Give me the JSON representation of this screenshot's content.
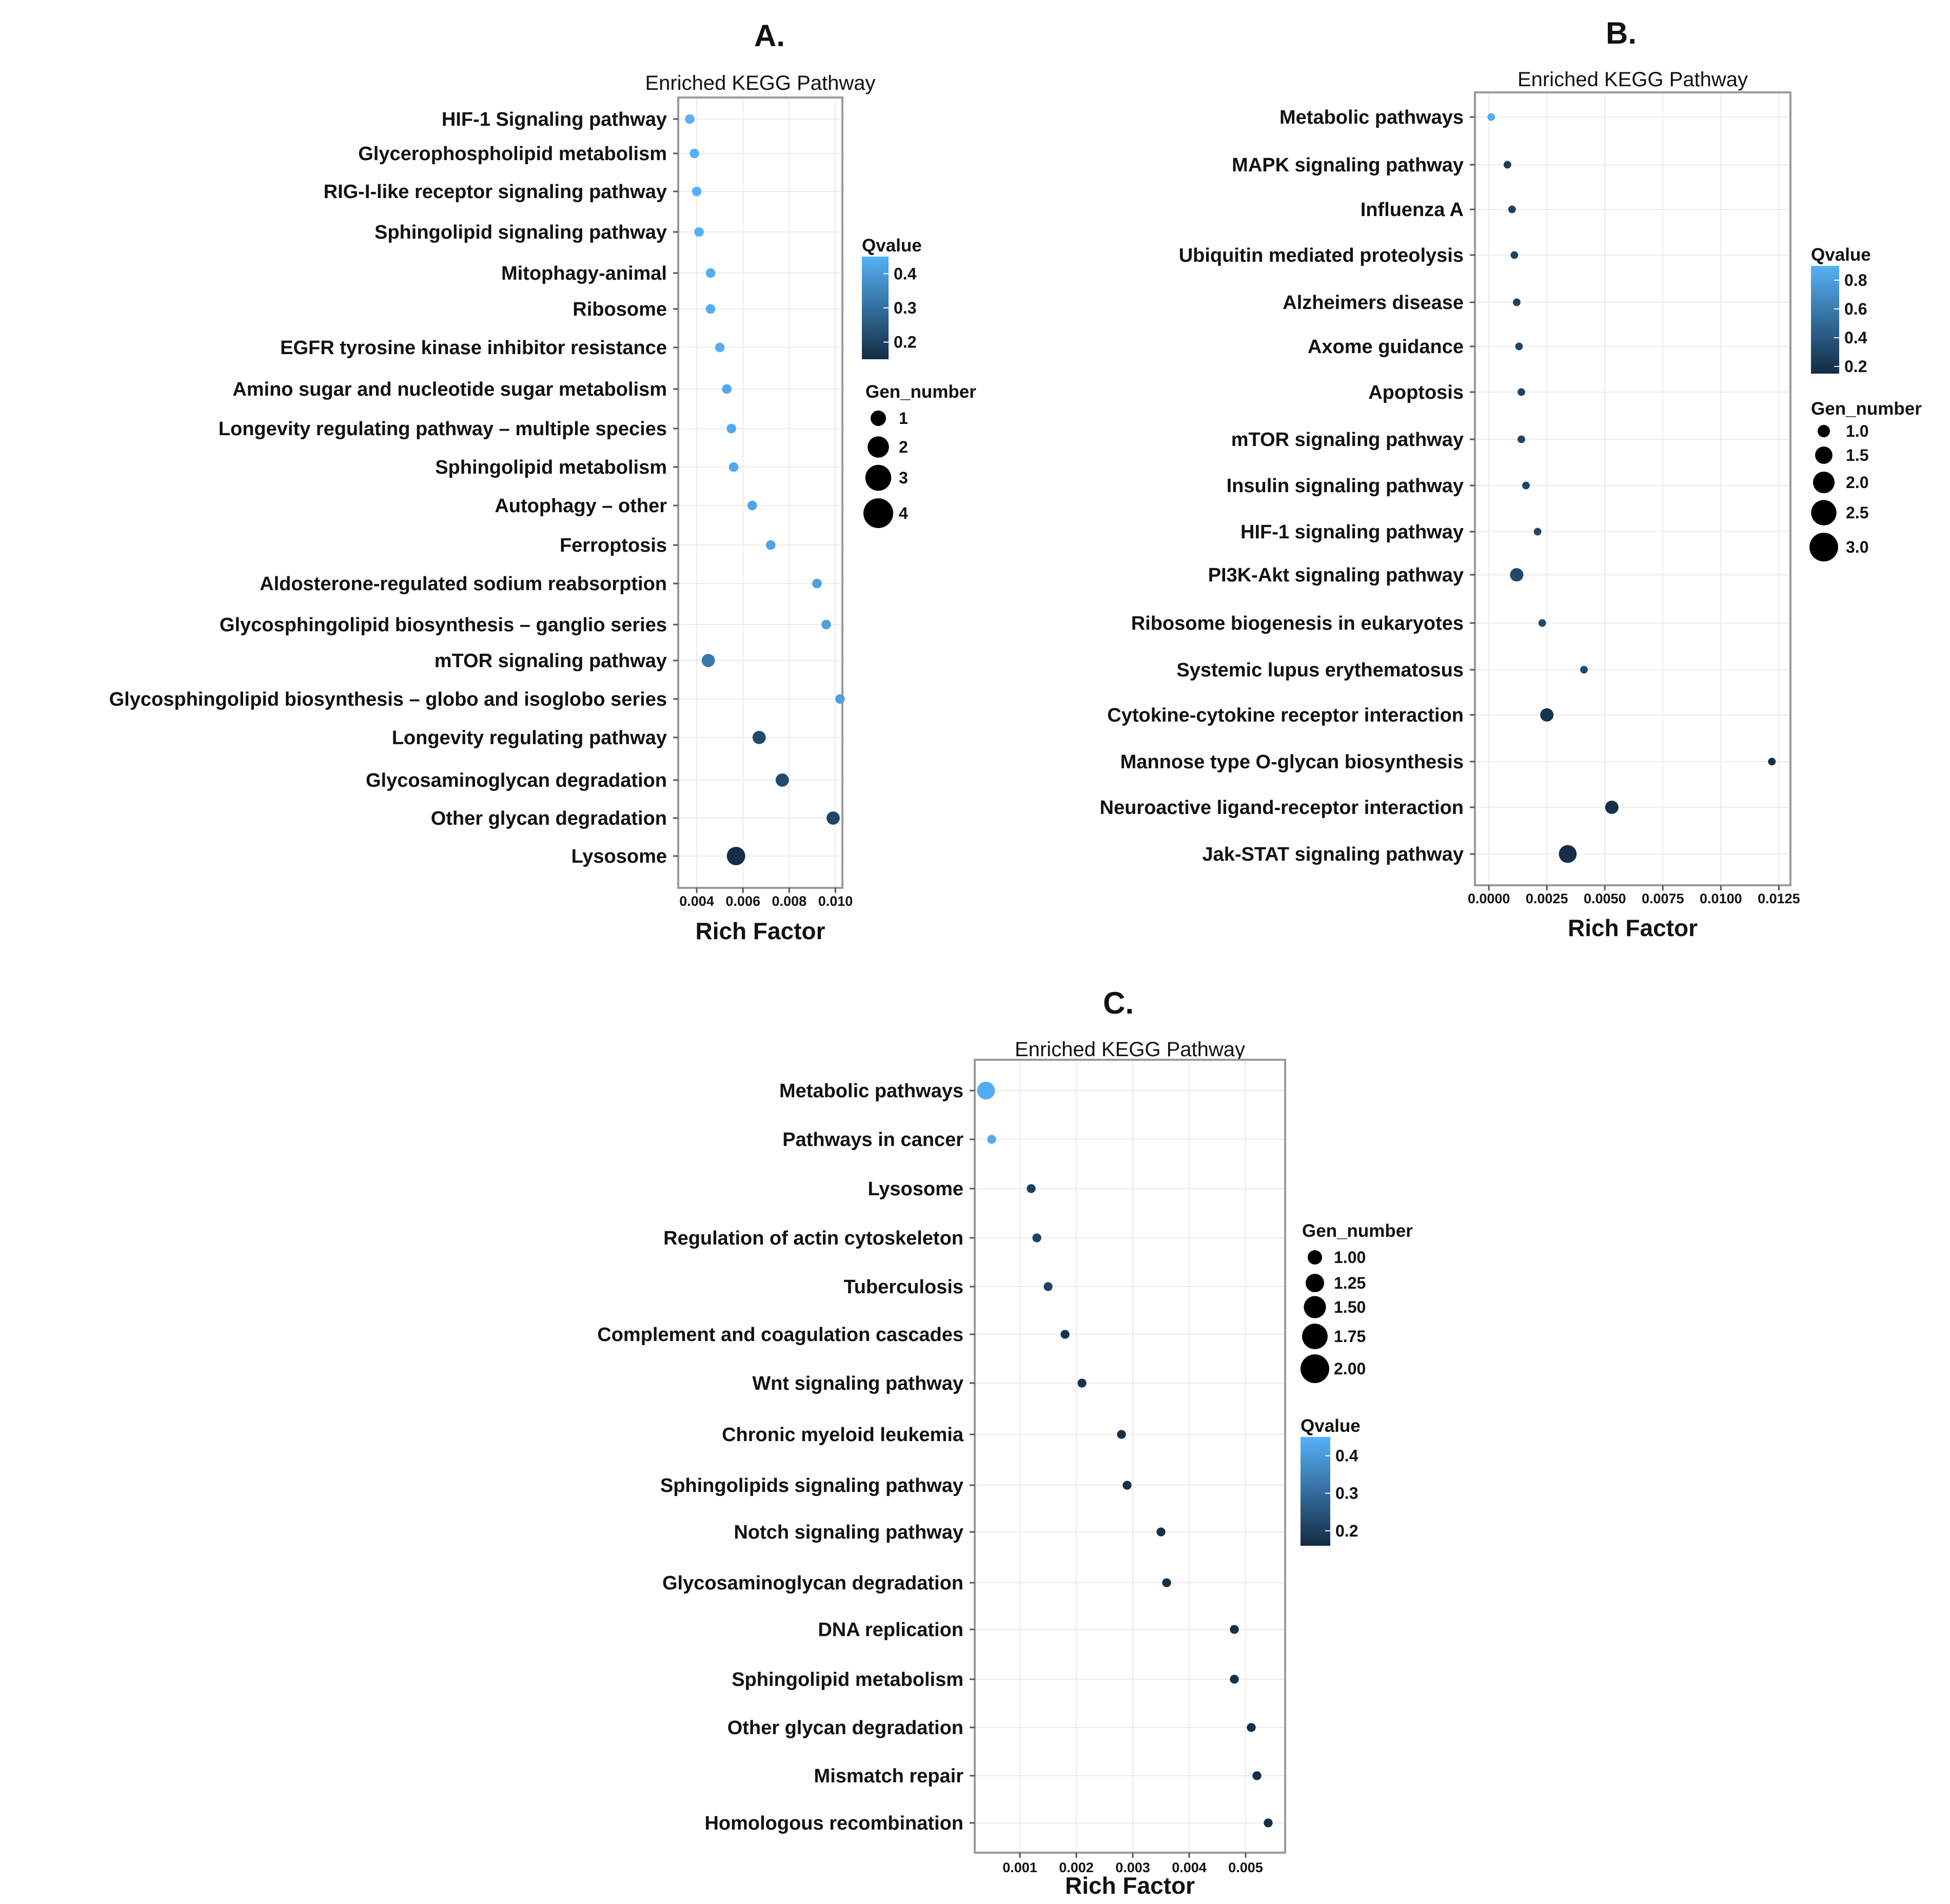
{
  "chart_data": [
    {
      "type": "scatter",
      "panel": "A.",
      "title": "Enriched KEGG Pathway",
      "xlabel": "Rich Factor",
      "ylabel": "",
      "xlim": [
        0.0032,
        0.0103
      ],
      "xticks": [
        0.004,
        0.006,
        0.008,
        0.01
      ],
      "xtick_labels": [
        "0.004",
        "0.006",
        "0.008",
        "0.010"
      ],
      "grid": true,
      "colorbar": {
        "title": "Qvalue",
        "ticks": [
          0.4,
          0.3,
          0.2
        ],
        "tick_labels": [
          "0.4",
          "0.3",
          "0.2"
        ],
        "range": [
          0.15,
          0.45
        ],
        "low_color": "#132b43",
        "high_color": "#56b1f7"
      },
      "size_legend": {
        "title": "Gen_number",
        "values": [
          1,
          2,
          3,
          4
        ],
        "labels": [
          "1",
          "2",
          "3",
          "4"
        ]
      },
      "points": [
        {
          "pathway": "HIF-1 Signaling pathway",
          "rich_factor": 0.0037,
          "qvalue": 0.45,
          "gene_number": 1
        },
        {
          "pathway": "Glycerophospholipid metabolism",
          "rich_factor": 0.0039,
          "qvalue": 0.45,
          "gene_number": 1
        },
        {
          "pathway": "RIG-I-like receptor signaling pathway",
          "rich_factor": 0.004,
          "qvalue": 0.45,
          "gene_number": 1
        },
        {
          "pathway": "Sphingolipid signaling pathway",
          "rich_factor": 0.0041,
          "qvalue": 0.45,
          "gene_number": 1
        },
        {
          "pathway": "Mitophagy-animal",
          "rich_factor": 0.0046,
          "qvalue": 0.44,
          "gene_number": 1
        },
        {
          "pathway": "Ribosome",
          "rich_factor": 0.0046,
          "qvalue": 0.44,
          "gene_number": 1
        },
        {
          "pathway": "EGFR tyrosine kinase inhibitor resistance",
          "rich_factor": 0.005,
          "qvalue": 0.44,
          "gene_number": 1
        },
        {
          "pathway": "Amino sugar and nucleotide sugar metabolism",
          "rich_factor": 0.0053,
          "qvalue": 0.43,
          "gene_number": 1
        },
        {
          "pathway": "Longevity regulating pathway – multiple species",
          "rich_factor": 0.0055,
          "qvalue": 0.43,
          "gene_number": 1
        },
        {
          "pathway": "Sphingolipid metabolism",
          "rich_factor": 0.0056,
          "qvalue": 0.43,
          "gene_number": 1
        },
        {
          "pathway": "Autophagy – other",
          "rich_factor": 0.0064,
          "qvalue": 0.42,
          "gene_number": 1
        },
        {
          "pathway": "Ferroptosis",
          "rich_factor": 0.0072,
          "qvalue": 0.42,
          "gene_number": 1
        },
        {
          "pathway": "Aldosterone-regulated sodium reabsorption",
          "rich_factor": 0.0092,
          "qvalue": 0.41,
          "gene_number": 1
        },
        {
          "pathway": "Glycosphingolipid biosynthesis – ganglio series",
          "rich_factor": 0.0096,
          "qvalue": 0.41,
          "gene_number": 1
        },
        {
          "pathway": "mTOR signaling pathway",
          "rich_factor": 0.0045,
          "qvalue": 0.32,
          "gene_number": 2
        },
        {
          "pathway": "Glycosphingolipid biosynthesis – globo and isoglobo series",
          "rich_factor": 0.0102,
          "qvalue": 0.41,
          "gene_number": 1
        },
        {
          "pathway": "Longevity regulating pathway",
          "rich_factor": 0.0067,
          "qvalue": 0.22,
          "gene_number": 2
        },
        {
          "pathway": "Glycosaminoglycan degradation",
          "rich_factor": 0.0077,
          "qvalue": 0.22,
          "gene_number": 2
        },
        {
          "pathway": "Other glycan degradation",
          "rich_factor": 0.0099,
          "qvalue": 0.21,
          "gene_number": 2
        },
        {
          "pathway": "Lysosome",
          "rich_factor": 0.0057,
          "qvalue": 0.16,
          "gene_number": 4
        }
      ]
    },
    {
      "type": "scatter",
      "panel": "B.",
      "title": "Enriched KEGG Pathway",
      "xlabel": "Rich Factor",
      "ylabel": "",
      "xlim": [
        -0.0006,
        0.013
      ],
      "xticks": [
        0.0,
        0.0025,
        0.005,
        0.0075,
        0.01,
        0.0125
      ],
      "xtick_labels": [
        "0.0000",
        "0.0025",
        "0.0050",
        "0.0075",
        "0.0100",
        "0.0125"
      ],
      "grid": true,
      "colorbar": {
        "title": "Qvalue",
        "ticks": [
          0.8,
          0.6,
          0.4,
          0.2
        ],
        "tick_labels": [
          "0.8",
          "0.6",
          "0.4",
          "0.2"
        ],
        "range": [
          0.15,
          0.9
        ],
        "low_color": "#132b43",
        "high_color": "#56b1f7"
      },
      "size_legend": {
        "title": "Gen_number",
        "values": [
          1.0,
          1.5,
          2.0,
          2.5,
          3.0
        ],
        "labels": [
          "1.0",
          "1.5",
          "2.0",
          "2.5",
          "3.0"
        ]
      },
      "points": [
        {
          "pathway": "Metabolic pathways",
          "rich_factor": 0.0001,
          "qvalue": 0.88,
          "gene_number": 1
        },
        {
          "pathway": "MAPK signaling pathway",
          "rich_factor": 0.0008,
          "qvalue": 0.25,
          "gene_number": 1
        },
        {
          "pathway": "Influenza A",
          "rich_factor": 0.001,
          "qvalue": 0.27,
          "gene_number": 1
        },
        {
          "pathway": "Ubiquitin mediated proteolysis",
          "rich_factor": 0.0011,
          "qvalue": 0.28,
          "gene_number": 1
        },
        {
          "pathway": "Alzheimers disease",
          "rich_factor": 0.0012,
          "qvalue": 0.28,
          "gene_number": 1
        },
        {
          "pathway": "Axome guidance",
          "rich_factor": 0.0013,
          "qvalue": 0.29,
          "gene_number": 1
        },
        {
          "pathway": "Apoptosis",
          "rich_factor": 0.0014,
          "qvalue": 0.29,
          "gene_number": 1
        },
        {
          "pathway": "mTOR signaling pathway",
          "rich_factor": 0.0014,
          "qvalue": 0.29,
          "gene_number": 1
        },
        {
          "pathway": "Insulin signaling pathway",
          "rich_factor": 0.0016,
          "qvalue": 0.3,
          "gene_number": 1
        },
        {
          "pathway": "HIF-1 signaling pathway",
          "rich_factor": 0.0021,
          "qvalue": 0.31,
          "gene_number": 1
        },
        {
          "pathway": "PI3K-Akt signaling pathway",
          "rich_factor": 0.0012,
          "qvalue": 0.32,
          "gene_number": 2
        },
        {
          "pathway": "Ribosome biogenesis in eukaryotes",
          "rich_factor": 0.0023,
          "qvalue": 0.32,
          "gene_number": 1
        },
        {
          "pathway": "Systemic lupus erythematosus",
          "rich_factor": 0.0041,
          "qvalue": 0.33,
          "gene_number": 1
        },
        {
          "pathway": "Cytokine-cytokine receptor interaction",
          "rich_factor": 0.0025,
          "qvalue": 0.2,
          "gene_number": 2
        },
        {
          "pathway": "Mannose type O-glycan biosynthesis",
          "rich_factor": 0.0122,
          "qvalue": 0.18,
          "gene_number": 1
        },
        {
          "pathway": "Neuroactive ligand-receptor interaction",
          "rich_factor": 0.0053,
          "qvalue": 0.18,
          "gene_number": 2
        },
        {
          "pathway": "Jak-STAT signaling pathway",
          "rich_factor": 0.0034,
          "qvalue": 0.17,
          "gene_number": 3
        }
      ]
    },
    {
      "type": "scatter",
      "panel": "C.",
      "title": "Enriched KEGG Pathway",
      "xlabel": "Rich Factor",
      "ylabel": "",
      "xlim": [
        0.0002,
        0.0057
      ],
      "xticks": [
        0.001,
        0.002,
        0.003,
        0.004,
        0.005
      ],
      "xtick_labels": [
        "0.001",
        "0.002",
        "0.003",
        "0.004",
        "0.005"
      ],
      "grid": true,
      "colorbar": {
        "title": "Qvalue",
        "ticks": [
          0.4,
          0.3,
          0.2
        ],
        "tick_labels": [
          "0.4",
          "0.3",
          "0.2"
        ],
        "range": [
          0.16,
          0.45
        ],
        "low_color": "#132b43",
        "high_color": "#56b1f7"
      },
      "size_legend": {
        "title": "Gen_number",
        "values": [
          1.0,
          1.25,
          1.5,
          1.75,
          2.0
        ],
        "labels": [
          "1.00",
          "1.25",
          "1.50",
          "1.75",
          "2.00"
        ]
      },
      "points": [
        {
          "pathway": "Metabolic pathways",
          "rich_factor": 0.0004,
          "qvalue": 0.44,
          "gene_number": 2
        },
        {
          "pathway": "Pathways in cancer",
          "rich_factor": 0.0005,
          "qvalue": 0.44,
          "gene_number": 1
        },
        {
          "pathway": "Lysosome",
          "rich_factor": 0.0012,
          "qvalue": 0.2,
          "gene_number": 1
        },
        {
          "pathway": "Regulation of actin cytoskeleton",
          "rich_factor": 0.0013,
          "qvalue": 0.21,
          "gene_number": 1
        },
        {
          "pathway": "Tuberculosis",
          "rich_factor": 0.0015,
          "qvalue": 0.21,
          "gene_number": 1
        },
        {
          "pathway": "Complement and coagulation cascades",
          "rich_factor": 0.0018,
          "qvalue": 0.18,
          "gene_number": 1
        },
        {
          "pathway": "Wnt signaling pathway",
          "rich_factor": 0.0021,
          "qvalue": 0.18,
          "gene_number": 1
        },
        {
          "pathway": "Chronic myeloid leukemia",
          "rich_factor": 0.0028,
          "qvalue": 0.17,
          "gene_number": 1
        },
        {
          "pathway": "Sphingolipids signaling pathway",
          "rich_factor": 0.0029,
          "qvalue": 0.17,
          "gene_number": 1
        },
        {
          "pathway": "Notch signaling pathway",
          "rich_factor": 0.0035,
          "qvalue": 0.17,
          "gene_number": 1
        },
        {
          "pathway": "Glycosaminoglycan degradation",
          "rich_factor": 0.0036,
          "qvalue": 0.17,
          "gene_number": 1
        },
        {
          "pathway": "DNA replication",
          "rich_factor": 0.0048,
          "qvalue": 0.17,
          "gene_number": 1
        },
        {
          "pathway": "Sphingolipid metabolism",
          "rich_factor": 0.0048,
          "qvalue": 0.17,
          "gene_number": 1
        },
        {
          "pathway": "Other glycan degradation",
          "rich_factor": 0.0051,
          "qvalue": 0.17,
          "gene_number": 1
        },
        {
          "pathway": "Mismatch repair",
          "rich_factor": 0.0052,
          "qvalue": 0.17,
          "gene_number": 1
        },
        {
          "pathway": "Homologous recombination",
          "rich_factor": 0.0054,
          "qvalue": 0.17,
          "gene_number": 1
        }
      ]
    }
  ]
}
